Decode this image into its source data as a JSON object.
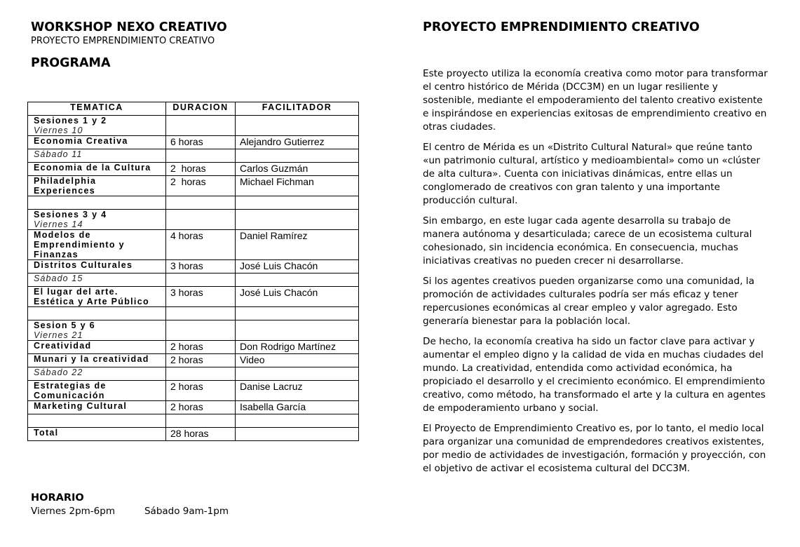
{
  "left": {
    "title": "WORKSHOP NEXO CREATIVO",
    "subtitle": "PROYECTO EMPRENDIMIENTO CREATIVO",
    "section": "PROGRAMA",
    "table": {
      "headers": [
        "TEMATICA",
        "DURACION",
        "FACILITADOR"
      ],
      "rows": [
        {
          "tema": [
            "Sesiones 1 y 2"
          ],
          "dia": "Viernes 10",
          "duracion": "",
          "facilitador": ""
        },
        {
          "tema": [
            "Economia Creativa"
          ],
          "duracion": "6 horas",
          "facilitador": "Alejandro Gutierrez"
        },
        {
          "tema": [],
          "dia": "Sábado 11",
          "duracion": "",
          "facilitador": ""
        },
        {
          "tema": [
            "Economia de la Cultura"
          ],
          "duracion": "2  horas",
          "facilitador": "Carlos Guzmán"
        },
        {
          "tema": [
            "Philadelphia",
            "Experiences"
          ],
          "duracion": "2  horas",
          "facilitador": "Michael Fichman"
        },
        {
          "tema": [],
          "duracion": "",
          "facilitador": ""
        },
        {
          "tema": [
            "Sesiones 3 y 4"
          ],
          "dia": "Viernes 14",
          "duracion": "",
          "facilitador": ""
        },
        {
          "tema": [
            "Modelos de",
            "Emprendimiento y",
            "Finanzas"
          ],
          "duracion": "4 horas",
          "facilitador": "Daniel Ramírez"
        },
        {
          "tema": [
            "Distritos Culturales"
          ],
          "duracion": "3 horas",
          "facilitador": "José Luis Chacón"
        },
        {
          "tema": [],
          "dia": "Sábado 15",
          "duracion": "",
          "facilitador": ""
        },
        {
          "tema": [
            "El lugar del arte.",
            "Estética y Arte Público"
          ],
          "duracion": "3 horas",
          "facilitador": "José Luis Chacón"
        },
        {
          "tema": [],
          "duracion": "",
          "facilitador": ""
        },
        {
          "tema": [
            "Sesion 5 y 6"
          ],
          "dia": "Viernes 21",
          "duracion": "",
          "facilitador": ""
        },
        {
          "tema": [
            "Creatividad"
          ],
          "duracion": "2 horas",
          "facilitador": "Don Rodrigo Martínez"
        },
        {
          "tema": [
            "Munari y la creatividad"
          ],
          "duracion": "2 horas",
          "facilitador": "Video"
        },
        {
          "tema": [],
          "dia": "Sábado 22",
          "duracion": "",
          "facilitador": ""
        },
        {
          "tema": [
            "Estrategias de",
            "Comunicación"
          ],
          "duracion": "2 horas",
          "facilitador": "Danise Lacruz"
        },
        {
          "tema": [
            "Marketing Cultural"
          ],
          "duracion": "2 horas",
          "facilitador": "Isabella García"
        },
        {
          "tema": [],
          "duracion": "",
          "facilitador": ""
        },
        {
          "tema": [
            "Total"
          ],
          "duracion": "28 horas",
          "facilitador": ""
        }
      ]
    },
    "horario": {
      "title": "HORARIO",
      "viernes": "Viernes 2pm-6pm",
      "sabado": "Sábado 9am-1pm"
    }
  },
  "right": {
    "title": "PROYECTO EMPRENDIMIENTO CREATIVO",
    "paragraphs": [
      "Este proyecto utiliza la economía creativa como motor para transformar el centro histórico de Mérida (DCC3M) en un lugar resiliente y sostenible, mediante el empoderamiento del talento creativo existente e inspirándose en experiencias exitosas de emprendimiento creativo en otras ciudades.",
      "El centro de Mérida es un «Distrito Cultural Natural» que reúne tanto «un patrimonio cultural, artístico y medioambiental» como un «clúster de alta cultura». Cuenta con iniciativas dinámicas, entre ellas un conglomerado de creativos con gran talento y una importante producción cultural.",
      "Sin embargo, en este lugar cada agente desarrolla su trabajo de manera autónoma y desarticulada; carece de un ecosistema cultural cohesionado, sin incidencia económica. En consecuencia, muchas iniciativas creativas no pueden crecer ni desarrollarse.",
      "Si los agentes creativos pueden organizarse como una comunidad, la promoción de actividades culturales podría ser más eficaz y tener repercusiones económicas al crear empleo y valor agregado. Esto generaría bienestar para la población local.",
      "De hecho, la economía creativa ha sido un factor clave para activar y aumentar el empleo digno y la calidad de vida en muchas ciudades del mundo. La creatividad, entendida como actividad económica, ha propiciado el desarrollo y el crecimiento económico. El emprendimiento creativo, como método, ha transformado el arte y la cultura en agentes de empoderamiento urbano y social.",
      "El Proyecto de Emprendimiento Creativo es, por lo tanto, el medio local para organizar una comunidad de emprendedores creativos existentes, por medio de actividades de investigación, formación y proyección, con el objetivo de activar el ecosistema cultural del DCC3M."
    ]
  }
}
